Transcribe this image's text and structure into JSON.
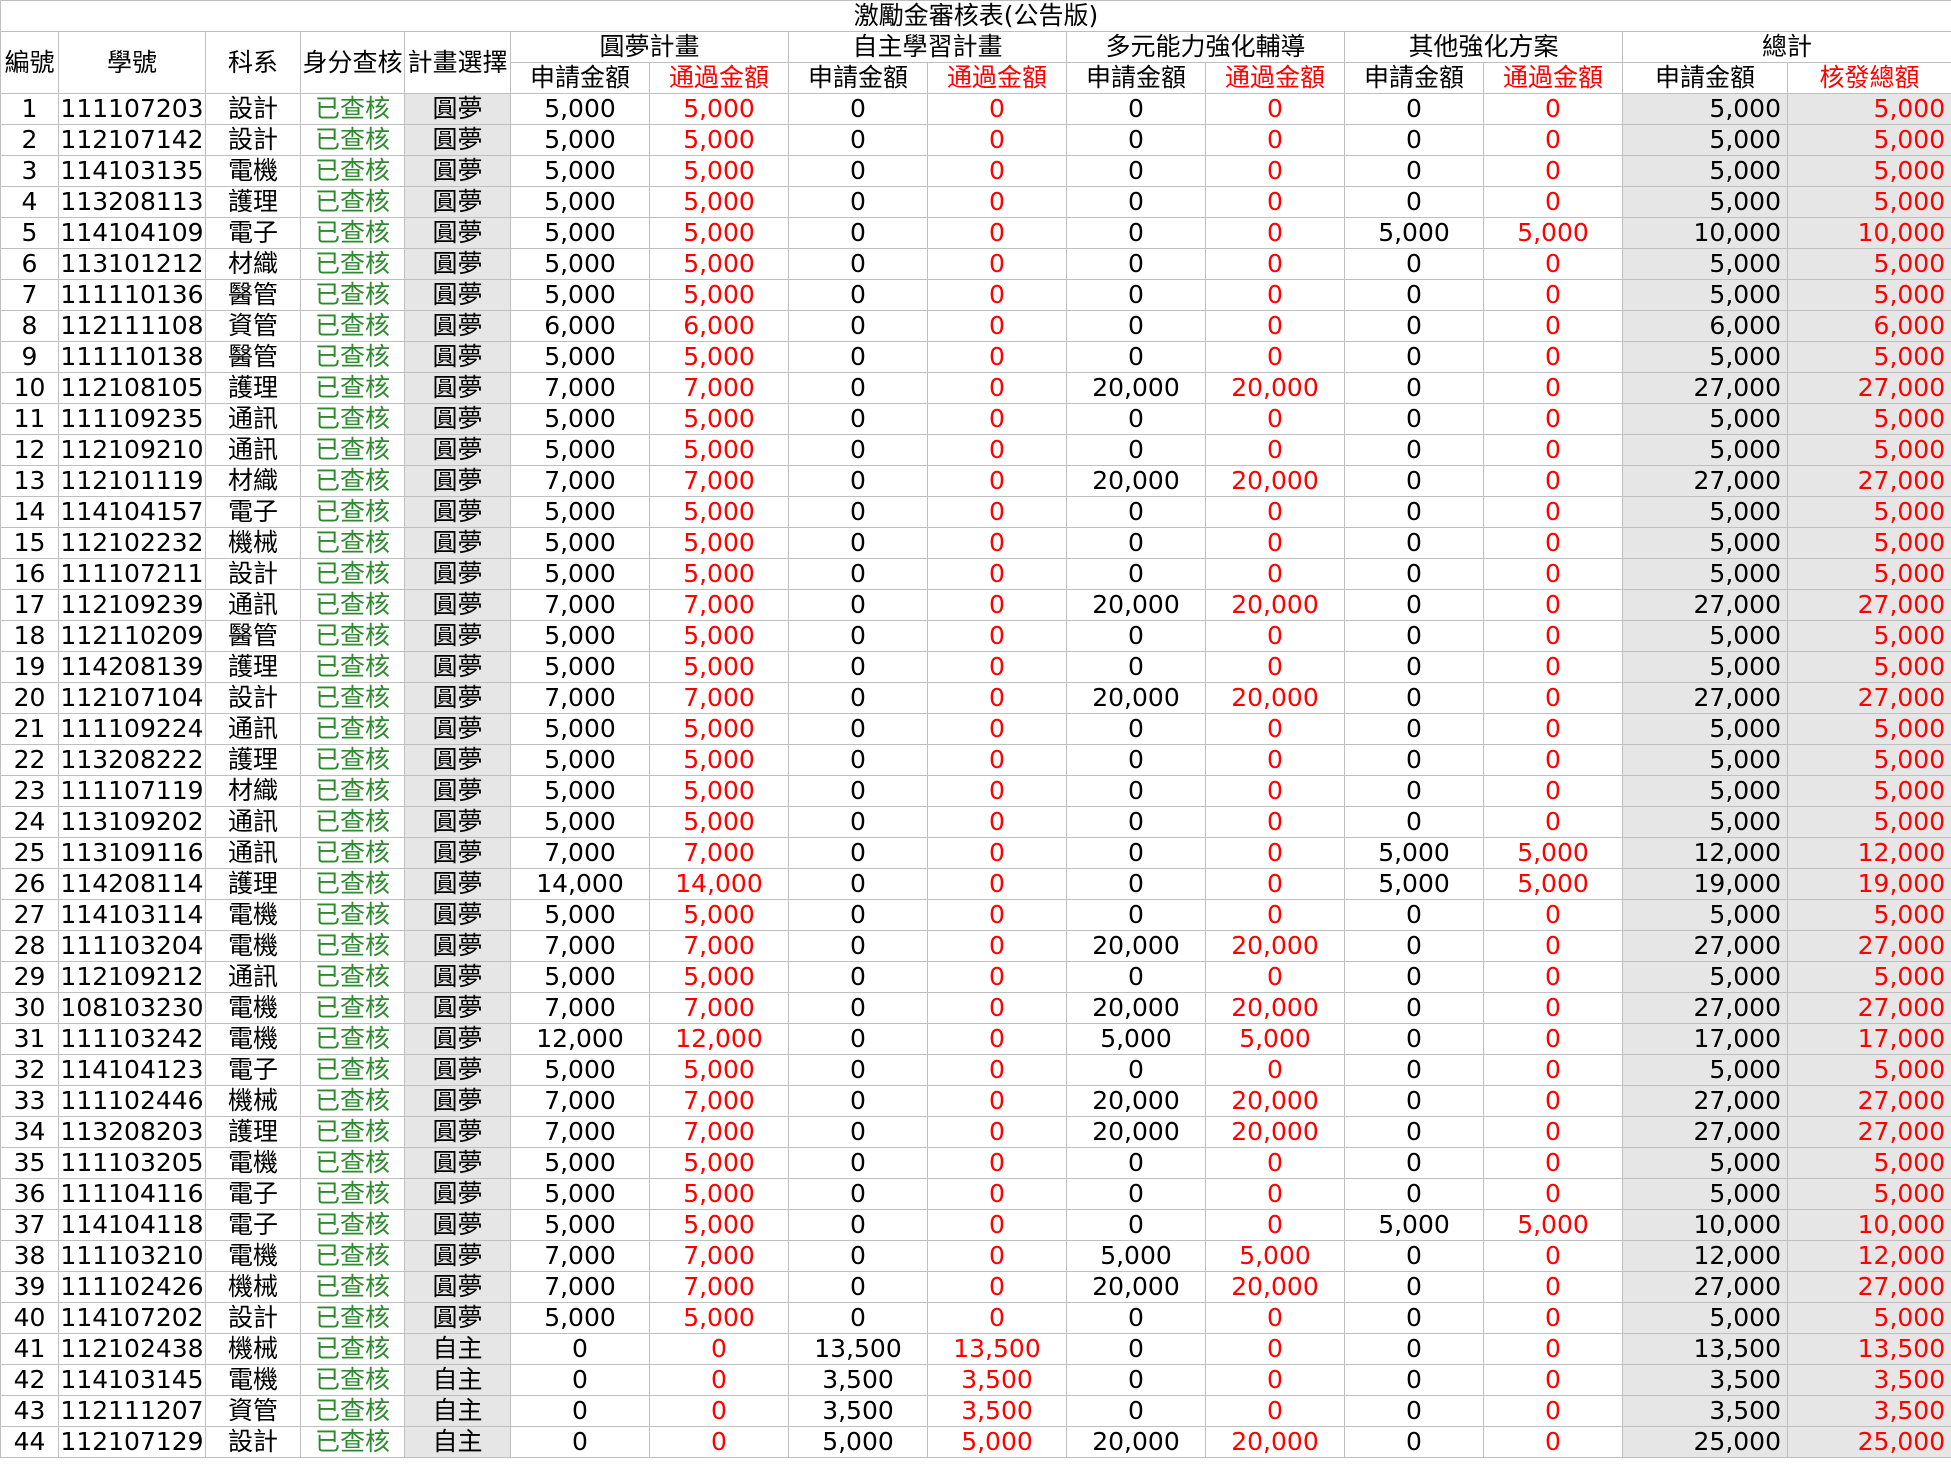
{
  "title": "激勵金審核表(公告版)",
  "headers": {
    "no": "編號",
    "student_id": "學號",
    "dept": "科系",
    "identity": "身分查核",
    "plan": "計畫選擇",
    "groups": [
      "圓夢計畫",
      "自主學習計畫",
      "多元能力強化輔導",
      "其他強化方案",
      "總計"
    ],
    "apply": "申請金額",
    "pass": "通過金額",
    "total_grant": "核發總額"
  },
  "rows": [
    [
      "1",
      "111107203",
      "設計",
      "已查核",
      "圓夢",
      "5,000",
      "5,000",
      "0",
      "0",
      "0",
      "0",
      "0",
      "0",
      "5,000",
      "5,000"
    ],
    [
      "2",
      "112107142",
      "設計",
      "已查核",
      "圓夢",
      "5,000",
      "5,000",
      "0",
      "0",
      "0",
      "0",
      "0",
      "0",
      "5,000",
      "5,000"
    ],
    [
      "3",
      "114103135",
      "電機",
      "已查核",
      "圓夢",
      "5,000",
      "5,000",
      "0",
      "0",
      "0",
      "0",
      "0",
      "0",
      "5,000",
      "5,000"
    ],
    [
      "4",
      "113208113",
      "護理",
      "已查核",
      "圓夢",
      "5,000",
      "5,000",
      "0",
      "0",
      "0",
      "0",
      "0",
      "0",
      "5,000",
      "5,000"
    ],
    [
      "5",
      "114104109",
      "電子",
      "已查核",
      "圓夢",
      "5,000",
      "5,000",
      "0",
      "0",
      "0",
      "0",
      "5,000",
      "5,000",
      "10,000",
      "10,000"
    ],
    [
      "6",
      "113101212",
      "材織",
      "已查核",
      "圓夢",
      "5,000",
      "5,000",
      "0",
      "0",
      "0",
      "0",
      "0",
      "0",
      "5,000",
      "5,000"
    ],
    [
      "7",
      "111110136",
      "醫管",
      "已查核",
      "圓夢",
      "5,000",
      "5,000",
      "0",
      "0",
      "0",
      "0",
      "0",
      "0",
      "5,000",
      "5,000"
    ],
    [
      "8",
      "112111108",
      "資管",
      "已查核",
      "圓夢",
      "6,000",
      "6,000",
      "0",
      "0",
      "0",
      "0",
      "0",
      "0",
      "6,000",
      "6,000"
    ],
    [
      "9",
      "111110138",
      "醫管",
      "已查核",
      "圓夢",
      "5,000",
      "5,000",
      "0",
      "0",
      "0",
      "0",
      "0",
      "0",
      "5,000",
      "5,000"
    ],
    [
      "10",
      "112108105",
      "護理",
      "已查核",
      "圓夢",
      "7,000",
      "7,000",
      "0",
      "0",
      "20,000",
      "20,000",
      "0",
      "0",
      "27,000",
      "27,000"
    ],
    [
      "11",
      "111109235",
      "通訊",
      "已查核",
      "圓夢",
      "5,000",
      "5,000",
      "0",
      "0",
      "0",
      "0",
      "0",
      "0",
      "5,000",
      "5,000"
    ],
    [
      "12",
      "112109210",
      "通訊",
      "已查核",
      "圓夢",
      "5,000",
      "5,000",
      "0",
      "0",
      "0",
      "0",
      "0",
      "0",
      "5,000",
      "5,000"
    ],
    [
      "13",
      "112101119",
      "材織",
      "已查核",
      "圓夢",
      "7,000",
      "7,000",
      "0",
      "0",
      "20,000",
      "20,000",
      "0",
      "0",
      "27,000",
      "27,000"
    ],
    [
      "14",
      "114104157",
      "電子",
      "已查核",
      "圓夢",
      "5,000",
      "5,000",
      "0",
      "0",
      "0",
      "0",
      "0",
      "0",
      "5,000",
      "5,000"
    ],
    [
      "15",
      "112102232",
      "機械",
      "已查核",
      "圓夢",
      "5,000",
      "5,000",
      "0",
      "0",
      "0",
      "0",
      "0",
      "0",
      "5,000",
      "5,000"
    ],
    [
      "16",
      "111107211",
      "設計",
      "已查核",
      "圓夢",
      "5,000",
      "5,000",
      "0",
      "0",
      "0",
      "0",
      "0",
      "0",
      "5,000",
      "5,000"
    ],
    [
      "17",
      "112109239",
      "通訊",
      "已查核",
      "圓夢",
      "7,000",
      "7,000",
      "0",
      "0",
      "20,000",
      "20,000",
      "0",
      "0",
      "27,000",
      "27,000"
    ],
    [
      "18",
      "112110209",
      "醫管",
      "已查核",
      "圓夢",
      "5,000",
      "5,000",
      "0",
      "0",
      "0",
      "0",
      "0",
      "0",
      "5,000",
      "5,000"
    ],
    [
      "19",
      "114208139",
      "護理",
      "已查核",
      "圓夢",
      "5,000",
      "5,000",
      "0",
      "0",
      "0",
      "0",
      "0",
      "0",
      "5,000",
      "5,000"
    ],
    [
      "20",
      "112107104",
      "設計",
      "已查核",
      "圓夢",
      "7,000",
      "7,000",
      "0",
      "0",
      "20,000",
      "20,000",
      "0",
      "0",
      "27,000",
      "27,000"
    ],
    [
      "21",
      "111109224",
      "通訊",
      "已查核",
      "圓夢",
      "5,000",
      "5,000",
      "0",
      "0",
      "0",
      "0",
      "0",
      "0",
      "5,000",
      "5,000"
    ],
    [
      "22",
      "113208222",
      "護理",
      "已查核",
      "圓夢",
      "5,000",
      "5,000",
      "0",
      "0",
      "0",
      "0",
      "0",
      "0",
      "5,000",
      "5,000"
    ],
    [
      "23",
      "111107119",
      "材織",
      "已查核",
      "圓夢",
      "5,000",
      "5,000",
      "0",
      "0",
      "0",
      "0",
      "0",
      "0",
      "5,000",
      "5,000"
    ],
    [
      "24",
      "113109202",
      "通訊",
      "已查核",
      "圓夢",
      "5,000",
      "5,000",
      "0",
      "0",
      "0",
      "0",
      "0",
      "0",
      "5,000",
      "5,000"
    ],
    [
      "25",
      "113109116",
      "通訊",
      "已查核",
      "圓夢",
      "7,000",
      "7,000",
      "0",
      "0",
      "0",
      "0",
      "5,000",
      "5,000",
      "12,000",
      "12,000"
    ],
    [
      "26",
      "114208114",
      "護理",
      "已查核",
      "圓夢",
      "14,000",
      "14,000",
      "0",
      "0",
      "0",
      "0",
      "5,000",
      "5,000",
      "19,000",
      "19,000"
    ],
    [
      "27",
      "114103114",
      "電機",
      "已查核",
      "圓夢",
      "5,000",
      "5,000",
      "0",
      "0",
      "0",
      "0",
      "0",
      "0",
      "5,000",
      "5,000"
    ],
    [
      "28",
      "111103204",
      "電機",
      "已查核",
      "圓夢",
      "7,000",
      "7,000",
      "0",
      "0",
      "20,000",
      "20,000",
      "0",
      "0",
      "27,000",
      "27,000"
    ],
    [
      "29",
      "112109212",
      "通訊",
      "已查核",
      "圓夢",
      "5,000",
      "5,000",
      "0",
      "0",
      "0",
      "0",
      "0",
      "0",
      "5,000",
      "5,000"
    ],
    [
      "30",
      "108103230",
      "電機",
      "已查核",
      "圓夢",
      "7,000",
      "7,000",
      "0",
      "0",
      "20,000",
      "20,000",
      "0",
      "0",
      "27,000",
      "27,000"
    ],
    [
      "31",
      "111103242",
      "電機",
      "已查核",
      "圓夢",
      "12,000",
      "12,000",
      "0",
      "0",
      "5,000",
      "5,000",
      "0",
      "0",
      "17,000",
      "17,000"
    ],
    [
      "32",
      "114104123",
      "電子",
      "已查核",
      "圓夢",
      "5,000",
      "5,000",
      "0",
      "0",
      "0",
      "0",
      "0",
      "0",
      "5,000",
      "5,000"
    ],
    [
      "33",
      "111102446",
      "機械",
      "已查核",
      "圓夢",
      "7,000",
      "7,000",
      "0",
      "0",
      "20,000",
      "20,000",
      "0",
      "0",
      "27,000",
      "27,000"
    ],
    [
      "34",
      "113208203",
      "護理",
      "已查核",
      "圓夢",
      "7,000",
      "7,000",
      "0",
      "0",
      "20,000",
      "20,000",
      "0",
      "0",
      "27,000",
      "27,000"
    ],
    [
      "35",
      "111103205",
      "電機",
      "已查核",
      "圓夢",
      "5,000",
      "5,000",
      "0",
      "0",
      "0",
      "0",
      "0",
      "0",
      "5,000",
      "5,000"
    ],
    [
      "36",
      "111104116",
      "電子",
      "已查核",
      "圓夢",
      "5,000",
      "5,000",
      "0",
      "0",
      "0",
      "0",
      "0",
      "0",
      "5,000",
      "5,000"
    ],
    [
      "37",
      "114104118",
      "電子",
      "已查核",
      "圓夢",
      "5,000",
      "5,000",
      "0",
      "0",
      "0",
      "0",
      "5,000",
      "5,000",
      "10,000",
      "10,000"
    ],
    [
      "38",
      "111103210",
      "電機",
      "已查核",
      "圓夢",
      "7,000",
      "7,000",
      "0",
      "0",
      "5,000",
      "5,000",
      "0",
      "0",
      "12,000",
      "12,000"
    ],
    [
      "39",
      "111102426",
      "機械",
      "已查核",
      "圓夢",
      "7,000",
      "7,000",
      "0",
      "0",
      "20,000",
      "20,000",
      "0",
      "0",
      "27,000",
      "27,000"
    ],
    [
      "40",
      "114107202",
      "設計",
      "已查核",
      "圓夢",
      "5,000",
      "5,000",
      "0",
      "0",
      "0",
      "0",
      "0",
      "0",
      "5,000",
      "5,000"
    ],
    [
      "41",
      "112102438",
      "機械",
      "已查核",
      "自主",
      "0",
      "0",
      "13,500",
      "13,500",
      "0",
      "0",
      "0",
      "0",
      "13,500",
      "13,500"
    ],
    [
      "42",
      "114103145",
      "電機",
      "已查核",
      "自主",
      "0",
      "0",
      "3,500",
      "3,500",
      "0",
      "0",
      "0",
      "0",
      "3,500",
      "3,500"
    ],
    [
      "43",
      "112111207",
      "資管",
      "已查核",
      "自主",
      "0",
      "0",
      "3,500",
      "3,500",
      "0",
      "0",
      "0",
      "0",
      "3,500",
      "3,500"
    ],
    [
      "44",
      "112107129",
      "設計",
      "已查核",
      "自主",
      "0",
      "0",
      "5,000",
      "5,000",
      "20,000",
      "20,000",
      "0",
      "0",
      "25,000",
      "25,000"
    ]
  ]
}
